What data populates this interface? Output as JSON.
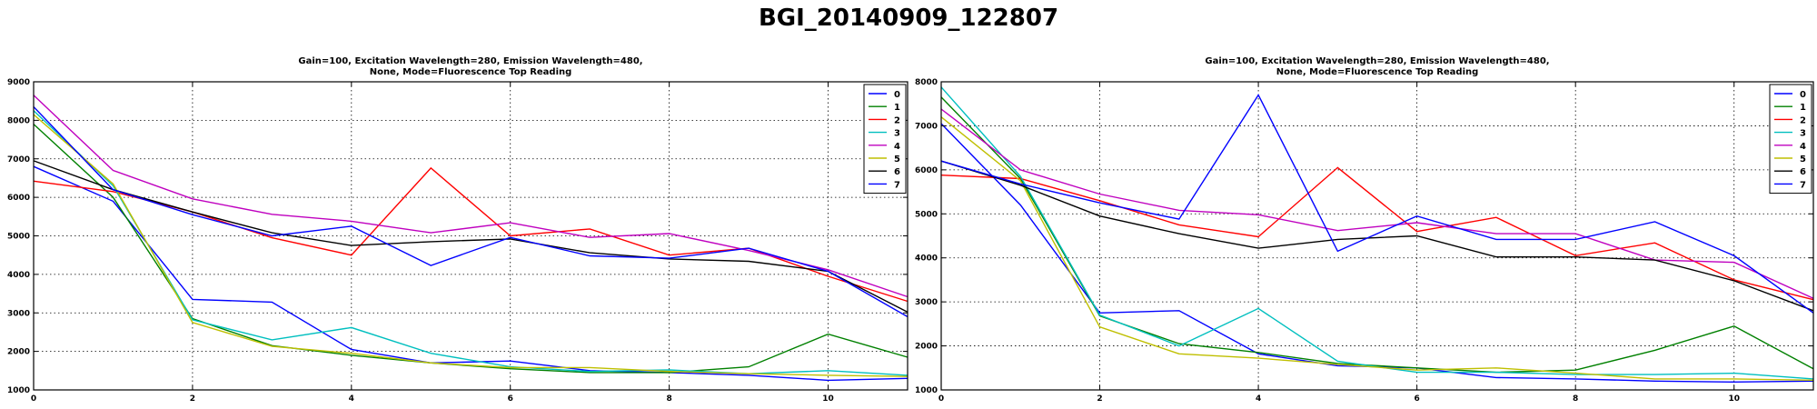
{
  "figure": {
    "suptitle": "BGI_20140909_122807"
  },
  "chart_data": [
    {
      "type": "line",
      "title": [
        "Gain=100, Excitation Wavelength=280, Emission Wavelength=480,",
        "None, Mode=Fluorescence Top Reading"
      ],
      "xlabel": "",
      "ylabel": "",
      "xlim": [
        0,
        11
      ],
      "ylim": [
        1000,
        9000
      ],
      "xticks": [
        0,
        2,
        4,
        6,
        8,
        10
      ],
      "yticks": [
        1000,
        2000,
        3000,
        4000,
        5000,
        6000,
        7000,
        8000,
        9000
      ],
      "grid": true,
      "legend_position": "top-right",
      "x": [
        0,
        1,
        2,
        3,
        4,
        5,
        6,
        7,
        8,
        9,
        10,
        11
      ],
      "series": [
        {
          "name": "0",
          "color": "#0000ff",
          "values": [
            6800,
            5900,
            3350,
            3280,
            2050,
            1700,
            1750,
            1500,
            1450,
            1380,
            1250,
            1300
          ]
        },
        {
          "name": "1",
          "color": "#008000",
          "values": [
            7900,
            6000,
            2850,
            2150,
            1900,
            1700,
            1550,
            1450,
            1450,
            1600,
            2450,
            1850
          ]
        },
        {
          "name": "2",
          "color": "#ff0000",
          "values": [
            6420,
            6150,
            5620,
            4950,
            4500,
            6760,
            5000,
            5180,
            4500,
            4680,
            3950,
            3300
          ]
        },
        {
          "name": "3",
          "color": "#00bfbf",
          "values": [
            8250,
            6300,
            2820,
            2300,
            2620,
            1950,
            1600,
            1480,
            1520,
            1420,
            1500,
            1380
          ]
        },
        {
          "name": "4",
          "color": "#bf00bf",
          "values": [
            8650,
            6700,
            5960,
            5560,
            5380,
            5080,
            5340,
            4960,
            5060,
            4620,
            4120,
            3420
          ]
        },
        {
          "name": "5",
          "color": "#bfbf00",
          "values": [
            8150,
            6350,
            2750,
            2130,
            1950,
            1700,
            1580,
            1580,
            1480,
            1420,
            1380,
            1350
          ]
        },
        {
          "name": "6",
          "color": "#000000",
          "values": [
            6950,
            6200,
            5620,
            5080,
            4750,
            4850,
            4920,
            4560,
            4400,
            4340,
            4080,
            3020
          ]
        },
        {
          "name": "7",
          "color": "#0000ff",
          "values": [
            8350,
            6200,
            5550,
            5000,
            5250,
            4230,
            4960,
            4480,
            4420,
            4680,
            4080,
            2900
          ]
        }
      ]
    },
    {
      "type": "line",
      "title": [
        "Gain=100, Excitation Wavelength=280, Emission Wavelength=480,",
        "None, Mode=Fluorescence Top Reading"
      ],
      "xlabel": "",
      "ylabel": "",
      "xlim": [
        0,
        11
      ],
      "ylim": [
        1000,
        8000
      ],
      "xticks": [
        0,
        2,
        4,
        6,
        8,
        10
      ],
      "yticks": [
        1000,
        2000,
        3000,
        4000,
        5000,
        6000,
        7000,
        8000
      ],
      "grid": true,
      "legend_position": "top-right",
      "x": [
        0,
        1,
        2,
        3,
        4,
        5,
        6,
        7,
        8,
        9,
        10,
        11
      ],
      "series": [
        {
          "name": "0",
          "color": "#0000ff",
          "values": [
            7050,
            5200,
            2750,
            2800,
            1820,
            1550,
            1500,
            1280,
            1250,
            1200,
            1180,
            1200
          ]
        },
        {
          "name": "1",
          "color": "#008000",
          "values": [
            7650,
            5800,
            2680,
            2050,
            1850,
            1600,
            1500,
            1400,
            1450,
            1900,
            2450,
            1480
          ]
        },
        {
          "name": "2",
          "color": "#ff0000",
          "values": [
            5880,
            5800,
            5300,
            4750,
            4480,
            6050,
            4600,
            4920,
            4050,
            4340,
            3500,
            3050
          ]
        },
        {
          "name": "3",
          "color": "#00bfbf",
          "values": [
            7880,
            5850,
            2700,
            2000,
            2850,
            1650,
            1400,
            1400,
            1350,
            1350,
            1380,
            1250
          ]
        },
        {
          "name": "4",
          "color": "#bf00bf",
          "values": [
            7380,
            6000,
            5450,
            5080,
            4980,
            4620,
            4800,
            4550,
            4550,
            3950,
            3900,
            3080
          ]
        },
        {
          "name": "5",
          "color": "#bfbf00",
          "values": [
            7200,
            5750,
            2430,
            1820,
            1720,
            1580,
            1450,
            1500,
            1380,
            1250,
            1250,
            1220
          ]
        },
        {
          "name": "6",
          "color": "#000000",
          "values": [
            6200,
            5650,
            4950,
            4550,
            4220,
            4420,
            4500,
            4020,
            4020,
            3950,
            3480,
            2800
          ]
        },
        {
          "name": "7",
          "color": "#0000ff",
          "values": [
            6200,
            5680,
            5250,
            4880,
            7700,
            4150,
            4950,
            4420,
            4420,
            4820,
            4050,
            2750
          ]
        }
      ]
    }
  ]
}
